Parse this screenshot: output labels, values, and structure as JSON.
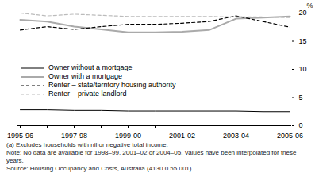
{
  "chart_data": {
    "type": "line",
    "categories": [
      "1995-96",
      null,
      "1997-98",
      null,
      "1999-00",
      null,
      "2001-02",
      null,
      "2003-04",
      null,
      "2005-06"
    ],
    "series": [
      {
        "name": "Owner without a mortgage",
        "color": "#000000",
        "line_style": "solid",
        "values": [
          2.8,
          2.8,
          2.7,
          2.7,
          2.6,
          2.6,
          2.6,
          2.6,
          2.6,
          2.5,
          2.5
        ]
      },
      {
        "name": "Owner with a mortgage",
        "color": "#aaaaaa",
        "line_style": "solid",
        "values": [
          18.8,
          18.5,
          17.6,
          17.1,
          16.6,
          16.6,
          16.7,
          17.0,
          19.0,
          19.2,
          19.4
        ]
      },
      {
        "name": "Renter – state/territory housing authority",
        "color": "#000000",
        "line_style": "dashed",
        "values": [
          17.0,
          17.6,
          17.1,
          17.6,
          18.0,
          18.0,
          18.2,
          18.5,
          19.5,
          18.5,
          17.5
        ]
      },
      {
        "name": "Renter – private landlord",
        "color": "#bbbbbb",
        "line_style": "dashed",
        "values": [
          20.0,
          19.5,
          19.8,
          19.6,
          19.4,
          19.4,
          19.4,
          19.4,
          19.3,
          19.3,
          19.2
        ]
      }
    ],
    "y_label": "%",
    "ylim": [
      0,
      20
    ],
    "yticks": [
      0,
      5,
      10,
      15,
      20
    ],
    "legend": "left",
    "notes": [
      "(a) Excludes households with nil or negative total income.",
      "Note: No data are available for 1998–99, 2001–02 or 2004–05. Values have been interpolated for these years.",
      "Source: Housing Occupancy and Costs, Australia (4130.0.55.001)."
    ]
  }
}
